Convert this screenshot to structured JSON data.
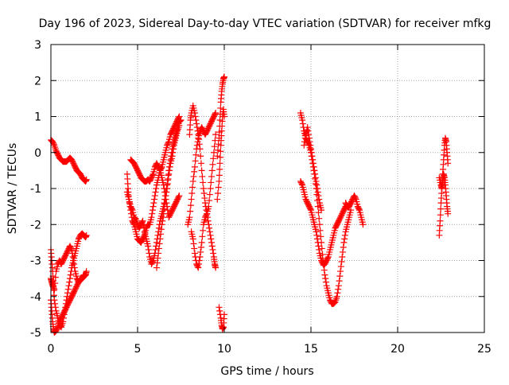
{
  "chart_data": {
    "type": "scatter",
    "title": "Day 196 of 2023, Sidereal Day-to-day VTEC variation (SDTVAR) for receiver mfkg",
    "xlabel": "GPS time / hours",
    "ylabel": "SDTVAR / TECUs",
    "xlim": [
      0,
      25
    ],
    "ylim": [
      -5,
      3
    ],
    "xticks": [
      "0",
      "5",
      "10",
      "15",
      "20",
      "25"
    ],
    "yticks": [
      "-5",
      "-4",
      "-3",
      "-2",
      "-1",
      "0",
      "1",
      "2",
      "3"
    ],
    "grid": true,
    "marker": "+",
    "color": "#ff0000",
    "series": [
      {
        "x": [
          0.0,
          0.1,
          0.2,
          0.3,
          0.4,
          0.5,
          0.6,
          0.7,
          0.8,
          0.9,
          1.0,
          1.1,
          1.2,
          1.3,
          1.4,
          1.5,
          1.6,
          1.7,
          1.8,
          1.9,
          2.0,
          2.05
        ],
        "y": [
          0.35,
          0.3,
          0.2,
          0.05,
          -0.05,
          -0.15,
          -0.2,
          -0.25,
          -0.25,
          -0.25,
          -0.2,
          -0.15,
          -0.2,
          -0.3,
          -0.4,
          -0.5,
          -0.55,
          -0.6,
          -0.7,
          -0.75,
          -0.8,
          -0.75
        ]
      },
      {
        "x": [
          0.0,
          0.05,
          0.1,
          0.15,
          0.2,
          0.3,
          0.4,
          0.5,
          0.6,
          0.7,
          0.8,
          0.9,
          1.0,
          1.1,
          1.2,
          1.3,
          1.4,
          1.5,
          1.6,
          1.7,
          1.8,
          1.9,
          2.0,
          2.05
        ],
        "y": [
          -2.7,
          -3.0,
          -3.3,
          -3.7,
          -4.1,
          -4.4,
          -4.6,
          -4.8,
          -4.85,
          -4.7,
          -4.4,
          -4.1,
          -3.8,
          -3.5,
          -3.2,
          -3.0,
          -2.8,
          -2.6,
          -2.4,
          -2.3,
          -2.25,
          -2.3,
          -2.35,
          -2.3
        ]
      },
      {
        "x": [
          0.0,
          0.05,
          0.1,
          0.2,
          0.3,
          0.4,
          0.5,
          0.6,
          0.7,
          0.8,
          0.9,
          1.0,
          1.1,
          1.2,
          1.3,
          1.4,
          1.5,
          1.6,
          1.7,
          1.8,
          1.9,
          2.0,
          2.05
        ],
        "y": [
          -3.5,
          -3.6,
          -3.7,
          -3.8,
          -3.3,
          -3.1,
          -3.0,
          -3.1,
          -3.0,
          -2.9,
          -2.8,
          -2.7,
          -2.6,
          -2.7,
          -3.0,
          -3.3,
          -3.5,
          -3.6,
          -3.5,
          -3.5,
          -3.4,
          -3.4,
          -3.3
        ]
      },
      {
        "x": [
          0.0,
          0.05,
          0.1,
          0.15,
          0.2,
          0.3,
          0.4,
          0.5,
          0.6,
          0.7,
          0.8,
          0.9,
          1.0,
          1.1,
          1.2,
          1.3,
          1.4,
          1.5,
          1.6,
          1.7,
          1.8,
          1.9,
          2.0
        ],
        "y": [
          -4.1,
          -4.4,
          -4.7,
          -4.9,
          -5.0,
          -4.95,
          -4.85,
          -4.7,
          -4.6,
          -4.5,
          -4.4,
          -4.3,
          -4.2,
          -4.1,
          -4.0,
          -3.9,
          -3.8,
          -3.7,
          -3.6,
          -3.55,
          -3.5,
          -3.45,
          -3.4
        ]
      },
      {
        "x": [
          4.4,
          4.45,
          4.5,
          4.6,
          4.7,
          4.8,
          4.9,
          5.0,
          5.1,
          5.2,
          5.3,
          5.4,
          5.5,
          5.6,
          5.7,
          5.8,
          5.9,
          6.0,
          6.1,
          6.2,
          6.3,
          6.4,
          6.5,
          6.6,
          6.7,
          6.8,
          6.9,
          7.0,
          7.1,
          7.2,
          7.3,
          7.4
        ],
        "y": [
          -0.6,
          -1.0,
          -1.3,
          -1.6,
          -1.9,
          -2.0,
          -2.2,
          -2.4,
          -2.45,
          -2.5,
          -2.4,
          -2.3,
          -2.1,
          -2.0,
          -2.0,
          -1.8,
          -1.5,
          -1.2,
          -0.9,
          -0.7,
          -0.5,
          -0.4,
          -0.2,
          0.0,
          0.2,
          0.3,
          0.5,
          0.6,
          0.7,
          0.8,
          0.9,
          1.0
        ]
      },
      {
        "x": [
          4.4,
          4.5,
          4.6,
          4.7,
          4.8,
          4.9,
          5.0,
          5.1,
          5.2,
          5.3,
          5.4,
          5.5,
          5.6,
          5.7,
          5.8,
          5.9,
          6.0,
          6.1,
          6.2,
          6.3,
          6.4,
          6.5,
          6.6,
          6.7,
          6.8,
          6.9,
          7.0,
          7.1,
          7.2,
          7.3,
          7.4,
          7.5
        ],
        "y": [
          -1.1,
          -1.3,
          -1.5,
          -1.6,
          -1.8,
          -1.85,
          -2.0,
          -2.1,
          -2.0,
          -1.9,
          -2.2,
          -2.4,
          -2.6,
          -2.9,
          -3.1,
          -3.0,
          -2.8,
          -2.5,
          -2.2,
          -1.9,
          -1.7,
          -1.5,
          -1.2,
          -0.9,
          -0.5,
          -0.2,
          0.1,
          0.3,
          0.5,
          0.7,
          0.85,
          0.9
        ]
      },
      {
        "x": [
          4.6,
          4.7,
          4.8,
          4.9,
          5.0,
          5.1,
          5.2,
          5.3,
          5.4,
          5.5,
          5.6,
          5.7,
          5.8,
          5.9,
          6.0,
          6.1,
          6.2,
          6.3,
          6.4,
          6.5,
          6.6,
          6.7,
          6.8,
          6.9,
          7.0,
          7.1,
          7.2,
          7.3,
          7.4
        ],
        "y": [
          -0.2,
          -0.25,
          -0.3,
          -0.4,
          -0.5,
          -0.6,
          -0.7,
          -0.75,
          -0.8,
          -0.8,
          -0.75,
          -0.8,
          -0.7,
          -0.6,
          -0.4,
          -0.3,
          -0.4,
          -0.5,
          -0.7,
          -0.9,
          -1.2,
          -1.5,
          -1.8,
          -1.7,
          -1.6,
          -1.5,
          -1.4,
          -1.3,
          -1.2
        ]
      },
      {
        "x": [
          6.1,
          6.2,
          6.3,
          6.4,
          6.5,
          6.6,
          6.7,
          6.8,
          6.9,
          7.0,
          7.1,
          7.2,
          7.3,
          7.4
        ],
        "y": [
          -3.2,
          -2.8,
          -2.4,
          -2.0,
          -1.7,
          -1.3,
          -1.0,
          -0.6,
          -0.3,
          -0.1,
          0.2,
          0.4,
          0.6,
          0.75
        ]
      },
      {
        "x": [
          7.9,
          8.0,
          8.1,
          8.2,
          8.3,
          8.4,
          8.5,
          8.6,
          8.7,
          8.8,
          8.9,
          9.0,
          9.1,
          9.2,
          9.3,
          9.4,
          9.5
        ],
        "y": [
          -2.0,
          -1.8,
          -1.3,
          -0.8,
          -0.4,
          0.1,
          0.4,
          0.6,
          0.7,
          0.6,
          0.5,
          0.6,
          0.7,
          0.8,
          0.9,
          1.0,
          1.1
        ]
      },
      {
        "x": [
          8.0,
          8.05,
          8.1,
          8.2,
          8.3,
          8.4,
          8.5,
          8.6,
          8.7,
          8.8,
          8.9,
          9.0,
          9.1,
          9.2,
          9.3,
          9.4,
          9.45,
          9.5
        ],
        "y": [
          0.5,
          0.9,
          1.1,
          1.3,
          1.1,
          0.8,
          0.5,
          0.1,
          -0.5,
          -1.0,
          -1.4,
          -1.7,
          -2.0,
          -2.3,
          -2.6,
          -2.9,
          -3.1,
          -3.2
        ]
      },
      {
        "x": [
          8.1,
          8.2,
          8.3,
          8.4,
          8.5,
          8.6,
          8.7,
          8.8,
          8.9,
          9.0,
          9.1,
          9.2,
          9.3,
          9.4,
          9.5
        ],
        "y": [
          -2.2,
          -2.4,
          -2.8,
          -3.1,
          -3.2,
          -2.9,
          -2.5,
          -2.0,
          -1.8,
          -1.7,
          -1.5,
          -1.0,
          -0.5,
          0.0,
          0.5
        ]
      },
      {
        "x": [
          9.6,
          9.7,
          9.75,
          9.8,
          9.85,
          9.9,
          9.95,
          10.0
        ],
        "y": [
          -0.1,
          0.4,
          0.9,
          1.4,
          1.7,
          1.9,
          2.05,
          2.1
        ]
      },
      {
        "x": [
          9.6,
          9.7,
          9.75,
          9.8,
          9.85,
          9.9,
          9.95,
          10.0
        ],
        "y": [
          -1.3,
          -0.8,
          -0.3,
          0.2,
          0.6,
          1.0,
          1.2,
          1.0
        ]
      },
      {
        "x": [
          9.7,
          9.8,
          9.85,
          9.9,
          9.95,
          10.0
        ],
        "y": [
          -4.3,
          -4.6,
          -4.8,
          -4.9,
          -4.85,
          -4.5
        ]
      },
      {
        "x": [
          14.4,
          14.5,
          14.6,
          14.7,
          14.8,
          14.9,
          15.0,
          15.1,
          15.2,
          15.3,
          15.4,
          15.5,
          15.6,
          15.7,
          15.8,
          15.9,
          16.0,
          16.1,
          16.2,
          16.3,
          16.4,
          16.5,
          16.6,
          16.7,
          16.8,
          16.9,
          17.0,
          17.1,
          17.2,
          17.3
        ],
        "y": [
          1.1,
          0.9,
          0.6,
          0.4,
          0.3,
          0.2,
          0.0,
          -0.3,
          -0.6,
          -1.0,
          -1.5,
          -2.0,
          -2.5,
          -3.0,
          -3.4,
          -3.7,
          -3.9,
          -4.1,
          -4.2,
          -4.2,
          -4.15,
          -4.0,
          -3.7,
          -3.3,
          -2.9,
          -2.5,
          -2.2,
          -2.0,
          -1.8,
          -1.6
        ]
      },
      {
        "x": [
          14.4,
          14.5,
          14.6,
          14.7,
          14.8,
          14.9,
          15.0,
          15.1,
          15.2,
          15.3,
          15.4,
          15.5,
          15.6,
          15.7,
          15.8,
          15.9,
          16.0,
          16.1,
          16.2,
          16.3,
          16.4,
          16.5,
          16.6,
          16.7,
          16.8,
          16.9,
          17.0
        ],
        "y": [
          -0.8,
          -0.9,
          -1.1,
          -1.3,
          -1.4,
          -1.5,
          -1.6,
          -1.8,
          -2.0,
          -2.2,
          -2.5,
          -2.8,
          -3.0,
          -3.1,
          -3.1,
          -3.0,
          -2.9,
          -2.7,
          -2.5,
          -2.3,
          -2.1,
          -2.0,
          -1.9,
          -1.8,
          -1.7,
          -1.6,
          -1.5
        ]
      },
      {
        "x": [
          14.6,
          14.7,
          14.8,
          14.9,
          15.0,
          15.1,
          15.2,
          15.3,
          15.4,
          15.5,
          15.6
        ],
        "y": [
          0.2,
          0.5,
          0.7,
          0.4,
          0.1,
          -0.2,
          -0.5,
          -0.8,
          -1.1,
          -1.4,
          -1.6
        ]
      },
      {
        "x": [
          17.0,
          17.1,
          17.2,
          17.3,
          17.4,
          17.5,
          17.6,
          17.7,
          17.8,
          17.9,
          18.0
        ],
        "y": [
          -1.4,
          -1.5,
          -1.5,
          -1.4,
          -1.3,
          -1.2,
          -1.3,
          -1.5,
          -1.6,
          -1.8,
          -2.0
        ]
      },
      {
        "x": [
          22.4,
          22.45,
          22.5,
          22.55,
          22.6,
          22.65,
          22.7,
          22.75,
          22.8,
          22.85,
          22.9
        ],
        "y": [
          -2.3,
          -1.9,
          -1.4,
          -1.0,
          -0.6,
          -0.2,
          0.2,
          0.4,
          0.3,
          0.0,
          -0.3
        ]
      },
      {
        "x": [
          22.4,
          22.5,
          22.55,
          22.6,
          22.65,
          22.7,
          22.75,
          22.8,
          22.85,
          22.9
        ],
        "y": [
          -0.7,
          -0.9,
          -1.0,
          -0.8,
          -0.6,
          -0.7,
          -0.9,
          -1.2,
          -1.5,
          -1.7
        ]
      }
    ]
  }
}
